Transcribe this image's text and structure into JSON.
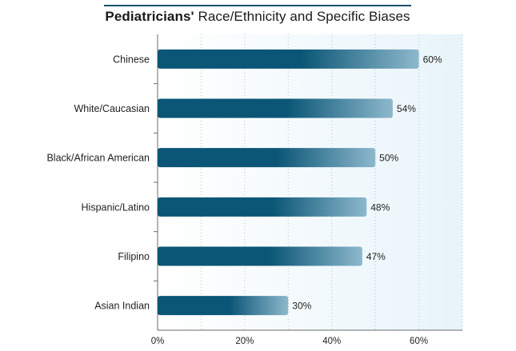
{
  "title": {
    "bold": "Pediatricians'",
    "rest": "Race/Ethnicity and Specific Biases"
  },
  "colors": {
    "bar_dark": "#0b5676",
    "bar_light": "#8db8cc",
    "title_rule": "#1a4f6e",
    "plot_bg_light": "#f4fafd",
    "plot_bg_tint": "#e8f4fa",
    "grid": "#b9c4ca"
  },
  "chart_data": {
    "type": "bar",
    "orientation": "horizontal",
    "title": "Pediatricians' Race/Ethnicity and Specific Biases",
    "categories": [
      "Chinese",
      "White/Caucasian",
      "Black/African American",
      "Hispanic/Latino",
      "Filipino",
      "Asian Indian"
    ],
    "values": [
      60,
      54,
      50,
      48,
      47,
      30
    ],
    "value_labels": [
      "60%",
      "54%",
      "50%",
      "48%",
      "47%",
      "30%"
    ],
    "xlim": [
      0,
      70
    ],
    "x_ticks": [
      0,
      20,
      40,
      60
    ],
    "x_tick_labels": [
      "0%",
      "20%",
      "40%",
      "60%"
    ],
    "xlabel": "",
    "ylabel": "",
    "grid": true,
    "legend": "none"
  }
}
